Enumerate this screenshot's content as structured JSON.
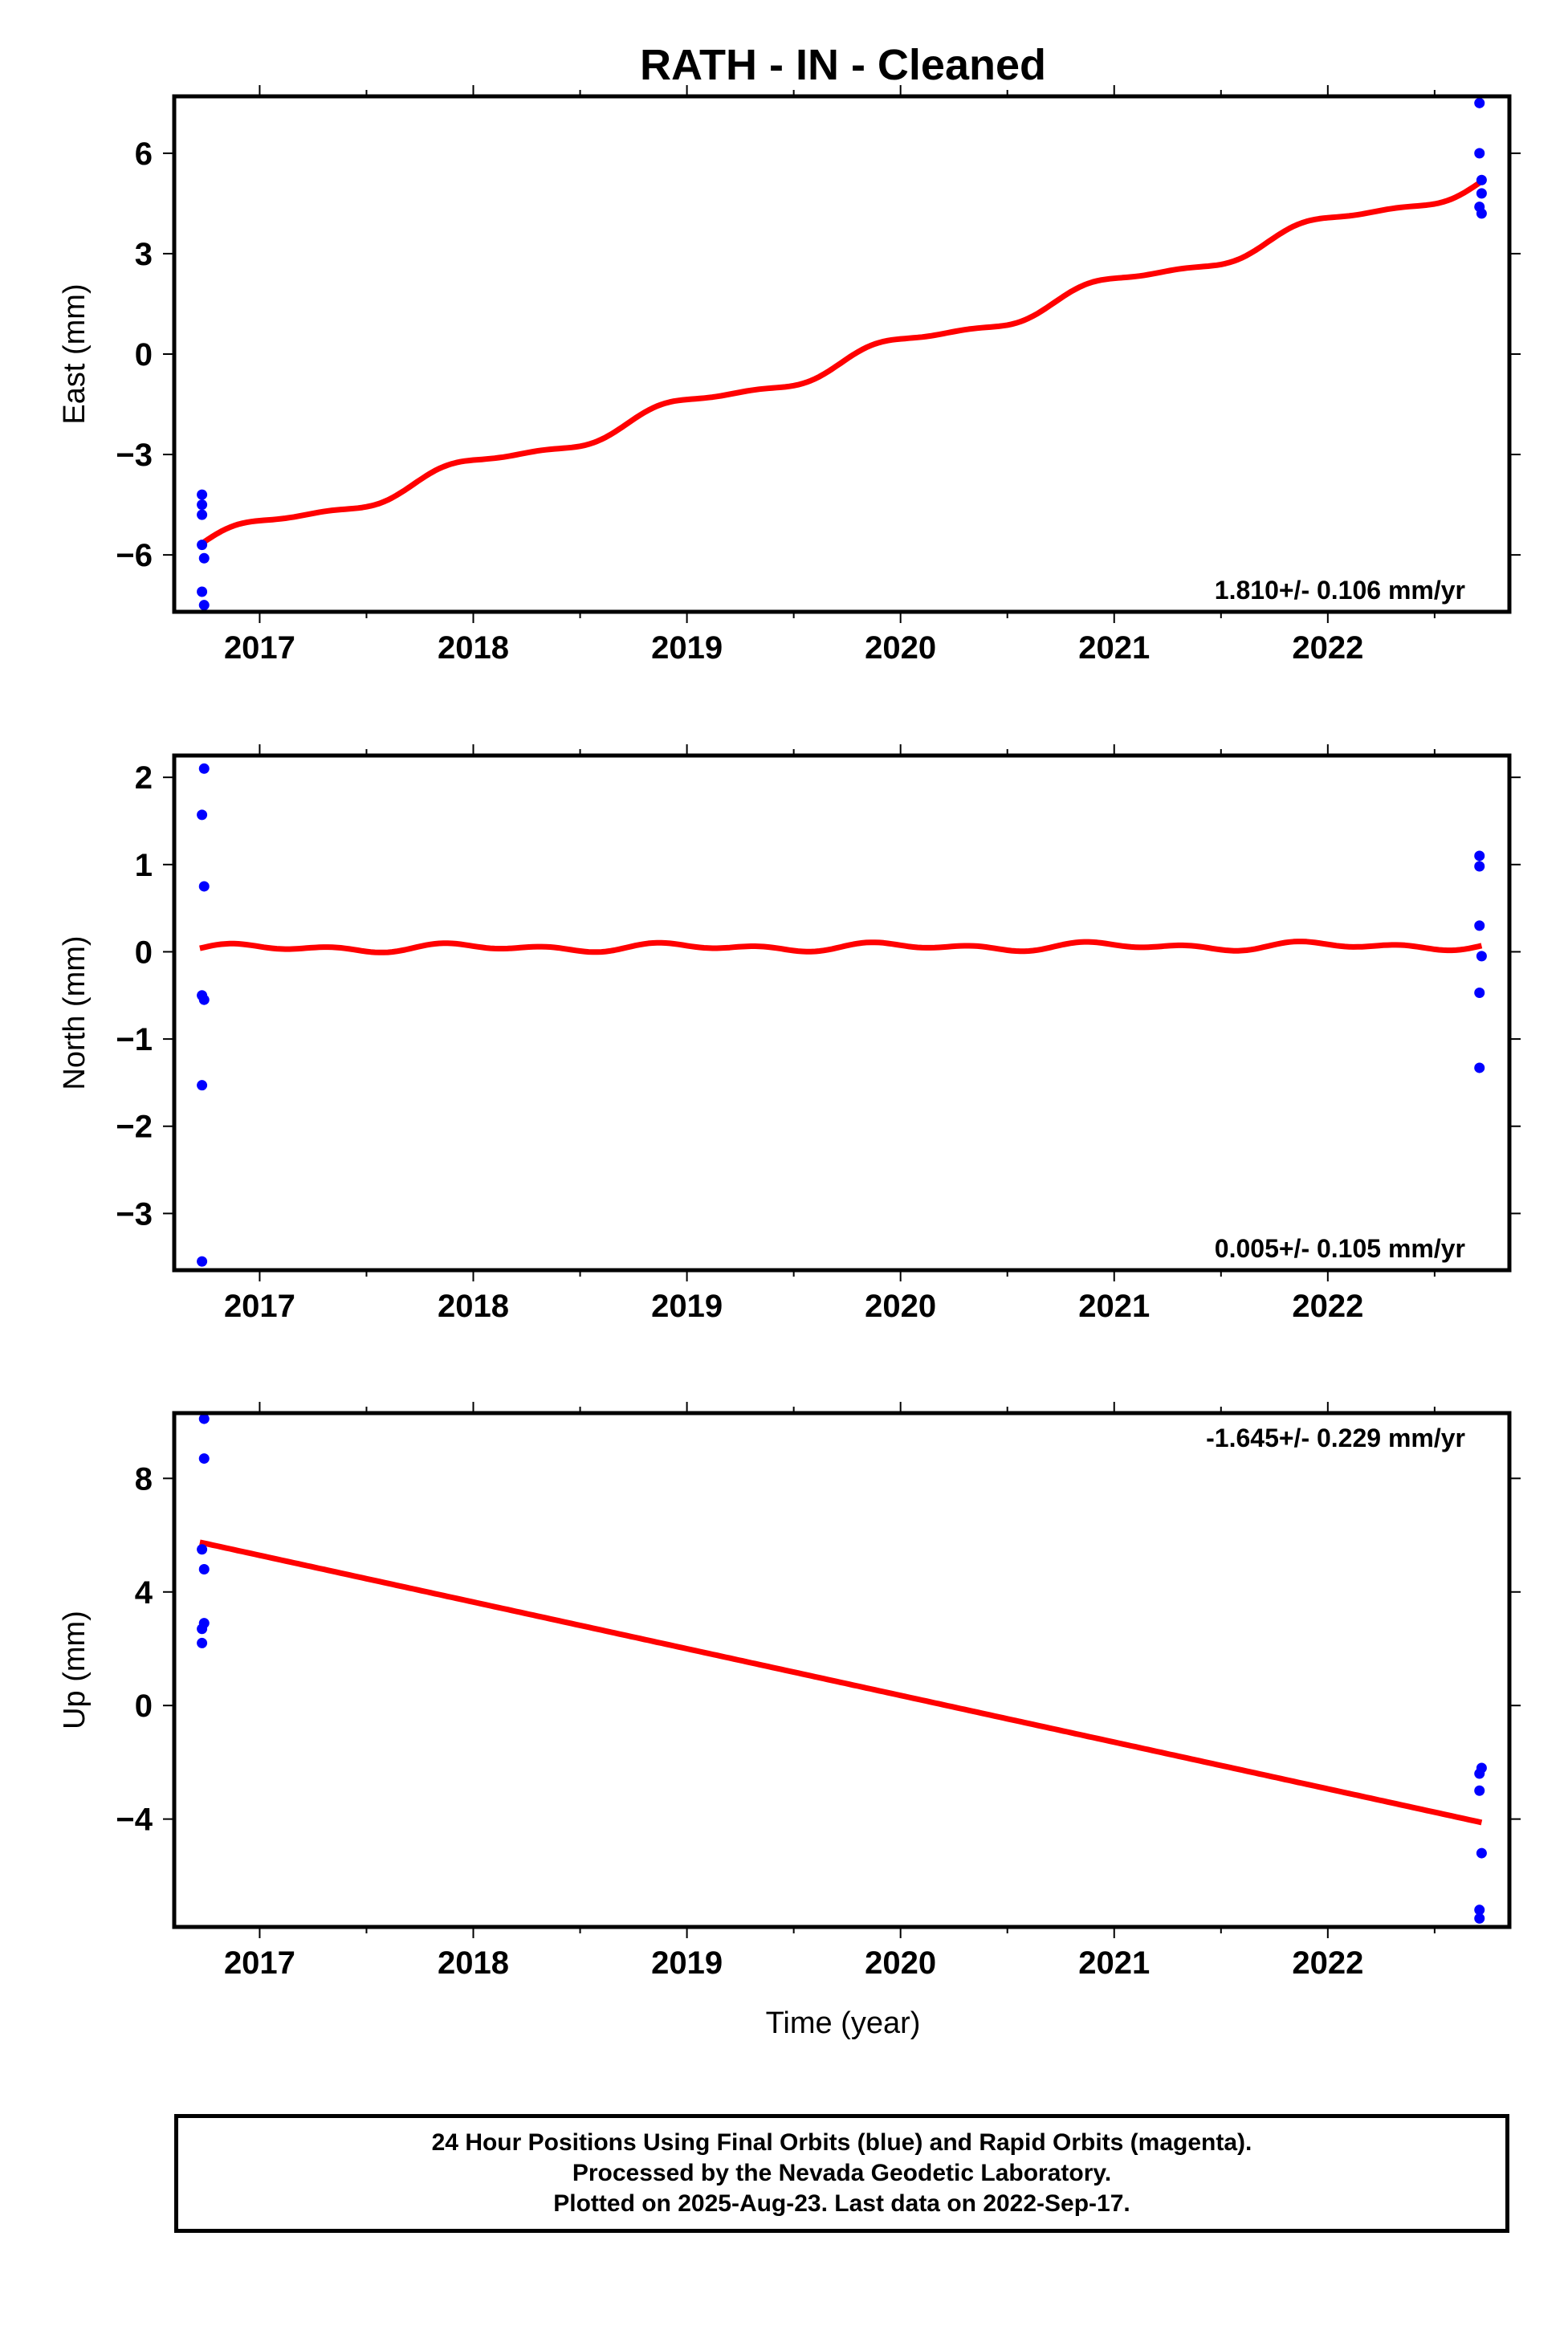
{
  "title": "RATH  - IN - Cleaned",
  "xlabel": "Time (year)",
  "footer": {
    "line1": "24 Hour Positions Using Final Orbits (blue) and Rapid Orbits (magenta).",
    "line2": "Processed by the Nevada Geodetic Laboratory.",
    "line3": "Plotted on 2025-Aug-23. Last data on 2022-Sep-17."
  },
  "colors": {
    "points": "#0000ff",
    "model": "#ff0000",
    "frame": "#000000"
  },
  "chart_data": [
    {
      "type": "scatter",
      "ylabel": "East (mm)",
      "rate_label": "1.810+/- 0.106 mm/yr",
      "rate_position": "bottom-right",
      "xlim": [
        2016.6,
        2022.85
      ],
      "ylim": [
        -7.7,
        7.7
      ],
      "xticks": [
        2017,
        2018,
        2019,
        2020,
        2021,
        2022
      ],
      "xtick_labels": [
        "2017",
        "2018",
        "2019",
        "2020",
        "2021",
        "2022"
      ],
      "yticks": [
        -6,
        -3,
        0,
        3,
        6
      ],
      "ytick_labels": [
        "−6",
        "−3",
        "0",
        "3",
        "6"
      ],
      "points": {
        "x": [
          2016.73,
          2016.73,
          2016.73,
          2016.73,
          2016.74,
          2016.73,
          2016.74,
          2022.71,
          2022.71,
          2022.72,
          2022.72,
          2022.71,
          2022.72
        ],
        "y": [
          -4.2,
          -4.5,
          -4.8,
          -5.7,
          -6.1,
          -7.1,
          -7.5,
          7.5,
          6.0,
          5.2,
          4.8,
          4.4,
          4.2
        ]
      },
      "model": {
        "x0": 2016.72,
        "x1": 2022.72,
        "y0": -5.7,
        "slope": 1.81,
        "annual_amp": 0.25,
        "semiannual_amp": 0.08
      }
    },
    {
      "type": "scatter",
      "ylabel": "North (mm)",
      "rate_label": "0.005+/- 0.105 mm/yr",
      "rate_position": "bottom-right",
      "xlim": [
        2016.6,
        2022.85
      ],
      "ylim": [
        -3.65,
        2.25
      ],
      "xticks": [
        2017,
        2018,
        2019,
        2020,
        2021,
        2022
      ],
      "xtick_labels": [
        "2017",
        "2018",
        "2019",
        "2020",
        "2021",
        "2022"
      ],
      "yticks": [
        -3,
        -2,
        -1,
        0,
        1,
        2
      ],
      "ytick_labels": [
        "−3",
        "−2",
        "−1",
        "0",
        "1",
        "2"
      ],
      "points": {
        "x": [
          2016.74,
          2016.73,
          2016.74,
          2016.73,
          2016.74,
          2016.73,
          2016.73,
          2022.71,
          2022.71,
          2022.71,
          2022.72,
          2022.71,
          2022.71
        ],
        "y": [
          2.1,
          1.57,
          0.75,
          -0.5,
          -0.55,
          -1.53,
          -3.55,
          1.1,
          0.98,
          0.3,
          -0.05,
          -0.47,
          -1.33
        ]
      },
      "model": {
        "x0": 2016.72,
        "x1": 2022.72,
        "y0": 0.04,
        "slope": 0.005,
        "annual_amp": 0.03,
        "semiannual_amp": 0.03
      }
    },
    {
      "type": "scatter",
      "ylabel": "Up (mm)",
      "rate_label": "-1.645+/- 0.229 mm/yr",
      "rate_position": "top-right",
      "xlim": [
        2016.6,
        2022.85
      ],
      "ylim": [
        -7.8,
        10.3
      ],
      "xticks": [
        2017,
        2018,
        2019,
        2020,
        2021,
        2022
      ],
      "xtick_labels": [
        "2017",
        "2018",
        "2019",
        "2020",
        "2021",
        "2022"
      ],
      "yticks": [
        -4,
        0,
        4,
        8
      ],
      "ytick_labels": [
        "−4",
        "0",
        "4",
        "8"
      ],
      "points": {
        "x": [
          2016.74,
          2016.74,
          2016.73,
          2016.74,
          2016.74,
          2016.73,
          2016.73,
          2022.72,
          2022.71,
          2022.71,
          2022.72,
          2022.71,
          2022.71
        ],
        "y": [
          10.1,
          8.7,
          5.5,
          4.8,
          2.9,
          2.7,
          2.2,
          -2.2,
          -2.4,
          -3.0,
          -5.2,
          -7.2,
          -7.5
        ]
      },
      "model": {
        "x0": 2016.72,
        "x1": 2022.72,
        "y0": 5.75,
        "slope": -1.645,
        "annual_amp": 0.0,
        "semiannual_amp": 0.0
      }
    }
  ]
}
